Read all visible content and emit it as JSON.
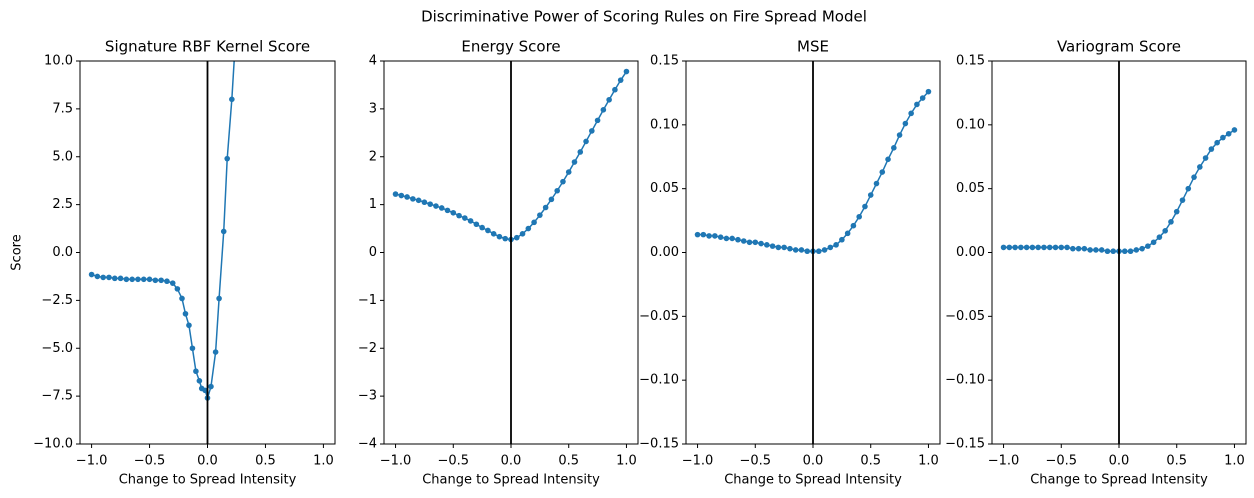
{
  "title": "Discriminative Power of Scoring Rules on Fire Spread Model",
  "chart_data": [
    {
      "type": "line",
      "title": "Signature RBF Kernel Score",
      "xlabel": "Change to Spread Intensity",
      "ylabel": "Score",
      "vline": 0,
      "xlim": [
        -1.1,
        1.1
      ],
      "ylim": [
        -10,
        10
      ],
      "xticks": [
        {
          "value": -1,
          "label": "−1.0"
        },
        {
          "value": -0.5,
          "label": "−0.5"
        },
        {
          "value": 0,
          "label": "0.0"
        },
        {
          "value": 0.5,
          "label": "0.5"
        },
        {
          "value": 1,
          "label": "1.0"
        }
      ],
      "yticks": [
        {
          "value": -10,
          "label": "−10.0"
        },
        {
          "value": -7.5,
          "label": "−7.5"
        },
        {
          "value": -5,
          "label": "−5.0"
        },
        {
          "value": -2.5,
          "label": "−2.5"
        },
        {
          "value": 0,
          "label": "0.0"
        },
        {
          "value": 2.5,
          "label": "2.5"
        },
        {
          "value": 5,
          "label": "5.0"
        },
        {
          "value": 7.5,
          "label": "7.5"
        },
        {
          "value": 10,
          "label": "10.0"
        }
      ],
      "series": [
        {
          "color": "#1f77b4",
          "x": [
            -1.0,
            -0.95,
            -0.9,
            -0.85,
            -0.8,
            -0.75,
            -0.7,
            -0.65,
            -0.6,
            -0.55,
            -0.5,
            -0.45,
            -0.4,
            -0.35,
            -0.3,
            -0.26,
            -0.22,
            -0.19,
            -0.16,
            -0.13,
            -0.1,
            -0.07,
            -0.05,
            -0.02,
            0.0,
            0.03,
            0.07,
            0.1,
            0.14,
            0.17,
            0.21,
            0.25
          ],
          "values": [
            -1.15,
            -1.25,
            -1.3,
            -1.3,
            -1.35,
            -1.35,
            -1.4,
            -1.4,
            -1.4,
            -1.4,
            -1.4,
            -1.45,
            -1.45,
            -1.5,
            -1.6,
            -1.9,
            -2.4,
            -3.2,
            -3.8,
            -5.0,
            -6.2,
            -6.7,
            -7.1,
            -7.2,
            -7.6,
            -7.0,
            -5.2,
            -2.4,
            1.1,
            4.9,
            8.0,
            12.0
          ]
        }
      ]
    },
    {
      "type": "line",
      "title": "Energy Score",
      "xlabel": "Change to Spread Intensity",
      "vline": 0,
      "xlim": [
        -1.1,
        1.1
      ],
      "ylim": [
        -4,
        4
      ],
      "xticks": [
        {
          "value": -1,
          "label": "−1.0"
        },
        {
          "value": -0.5,
          "label": "−0.5"
        },
        {
          "value": 0,
          "label": "0.0"
        },
        {
          "value": 0.5,
          "label": "0.5"
        },
        {
          "value": 1,
          "label": "1.0"
        }
      ],
      "yticks": [
        {
          "value": -4,
          "label": "−4"
        },
        {
          "value": -3,
          "label": "−3"
        },
        {
          "value": -2,
          "label": "−2"
        },
        {
          "value": -1,
          "label": "−1"
        },
        0,
        1,
        2,
        3,
        4
      ],
      "series": [
        {
          "color": "#1f77b4",
          "x": [
            -1.0,
            -0.95,
            -0.9,
            -0.85,
            -0.8,
            -0.75,
            -0.7,
            -0.65,
            -0.6,
            -0.55,
            -0.5,
            -0.45,
            -0.4,
            -0.35,
            -0.3,
            -0.25,
            -0.2,
            -0.15,
            -0.1,
            -0.05,
            0.0,
            0.05,
            0.1,
            0.15,
            0.2,
            0.25,
            0.3,
            0.35,
            0.4,
            0.45,
            0.5,
            0.55,
            0.6,
            0.65,
            0.7,
            0.75,
            0.8,
            0.85,
            0.9,
            0.95,
            1.0
          ],
          "values": [
            1.22,
            1.19,
            1.16,
            1.12,
            1.09,
            1.05,
            1.01,
            0.97,
            0.93,
            0.88,
            0.83,
            0.77,
            0.72,
            0.66,
            0.59,
            0.52,
            0.46,
            0.39,
            0.33,
            0.29,
            0.27,
            0.31,
            0.39,
            0.5,
            0.63,
            0.78,
            0.94,
            1.11,
            1.29,
            1.48,
            1.68,
            1.89,
            2.1,
            2.32,
            2.54,
            2.76,
            2.98,
            3.19,
            3.4,
            3.6,
            3.78
          ]
        }
      ]
    },
    {
      "type": "line",
      "title": "MSE",
      "xlabel": "Change to Spread Intensity",
      "vline": 0,
      "xlim": [
        -1.1,
        1.1
      ],
      "ylim": [
        -0.15,
        0.15
      ],
      "xticks": [
        {
          "value": -1,
          "label": "−1.0"
        },
        {
          "value": -0.5,
          "label": "−0.5"
        },
        {
          "value": 0,
          "label": "0.0"
        },
        {
          "value": 0.5,
          "label": "0.5"
        },
        {
          "value": 1,
          "label": "1.0"
        }
      ],
      "yticks": [
        {
          "value": -0.15,
          "label": "−0.15"
        },
        {
          "value": -0.1,
          "label": "−0.10"
        },
        {
          "value": -0.05,
          "label": "−0.05"
        },
        {
          "value": 0,
          "label": "0.00"
        },
        {
          "value": 0.05,
          "label": "0.05"
        },
        {
          "value": 0.1,
          "label": "0.10"
        },
        {
          "value": 0.15,
          "label": "0.15"
        }
      ],
      "series": [
        {
          "color": "#1f77b4",
          "x": [
            -1.0,
            -0.95,
            -0.9,
            -0.85,
            -0.8,
            -0.75,
            -0.7,
            -0.65,
            -0.6,
            -0.55,
            -0.5,
            -0.45,
            -0.4,
            -0.35,
            -0.3,
            -0.25,
            -0.2,
            -0.15,
            -0.1,
            -0.05,
            0.0,
            0.05,
            0.1,
            0.15,
            0.2,
            0.25,
            0.3,
            0.35,
            0.4,
            0.45,
            0.5,
            0.55,
            0.6,
            0.65,
            0.7,
            0.75,
            0.8,
            0.85,
            0.9,
            0.95,
            1.0
          ],
          "values": [
            0.014,
            0.014,
            0.013,
            0.013,
            0.012,
            0.011,
            0.011,
            0.01,
            0.009,
            0.008,
            0.008,
            0.007,
            0.006,
            0.005,
            0.004,
            0.004,
            0.003,
            0.002,
            0.002,
            0.001,
            0.001,
            0.001,
            0.002,
            0.004,
            0.006,
            0.01,
            0.015,
            0.021,
            0.028,
            0.036,
            0.045,
            0.054,
            0.063,
            0.073,
            0.082,
            0.092,
            0.101,
            0.109,
            0.116,
            0.121,
            0.126
          ]
        }
      ]
    },
    {
      "type": "line",
      "title": "Variogram Score",
      "xlabel": "Change to Spread Intensity",
      "vline": 0,
      "xlim": [
        -1.1,
        1.1
      ],
      "ylim": [
        -0.15,
        0.15
      ],
      "xticks": [
        {
          "value": -1,
          "label": "−1.0"
        },
        {
          "value": -0.5,
          "label": "−0.5"
        },
        {
          "value": 0,
          "label": "0.0"
        },
        {
          "value": 0.5,
          "label": "0.5"
        },
        {
          "value": 1,
          "label": "1.0"
        }
      ],
      "yticks": [
        {
          "value": -0.15,
          "label": "−0.15"
        },
        {
          "value": -0.1,
          "label": "−0.10"
        },
        {
          "value": -0.05,
          "label": "−0.05"
        },
        {
          "value": 0,
          "label": "0.00"
        },
        {
          "value": 0.05,
          "label": "0.05"
        },
        {
          "value": 0.1,
          "label": "0.10"
        },
        {
          "value": 0.15,
          "label": "0.15"
        }
      ],
      "series": [
        {
          "color": "#1f77b4",
          "x": [
            -1.0,
            -0.95,
            -0.9,
            -0.85,
            -0.8,
            -0.75,
            -0.7,
            -0.65,
            -0.6,
            -0.55,
            -0.5,
            -0.45,
            -0.4,
            -0.35,
            -0.3,
            -0.25,
            -0.2,
            -0.15,
            -0.1,
            -0.05,
            0.0,
            0.05,
            0.1,
            0.15,
            0.2,
            0.25,
            0.3,
            0.35,
            0.4,
            0.45,
            0.5,
            0.55,
            0.6,
            0.65,
            0.7,
            0.75,
            0.8,
            0.85,
            0.9,
            0.95,
            1.0
          ],
          "values": [
            0.004,
            0.004,
            0.004,
            0.004,
            0.004,
            0.004,
            0.004,
            0.004,
            0.004,
            0.004,
            0.004,
            0.004,
            0.003,
            0.003,
            0.003,
            0.002,
            0.002,
            0.002,
            0.001,
            0.001,
            0.001,
            0.001,
            0.001,
            0.002,
            0.003,
            0.005,
            0.008,
            0.012,
            0.017,
            0.024,
            0.032,
            0.041,
            0.05,
            0.059,
            0.067,
            0.074,
            0.081,
            0.086,
            0.09,
            0.093,
            0.096
          ]
        }
      ]
    }
  ]
}
